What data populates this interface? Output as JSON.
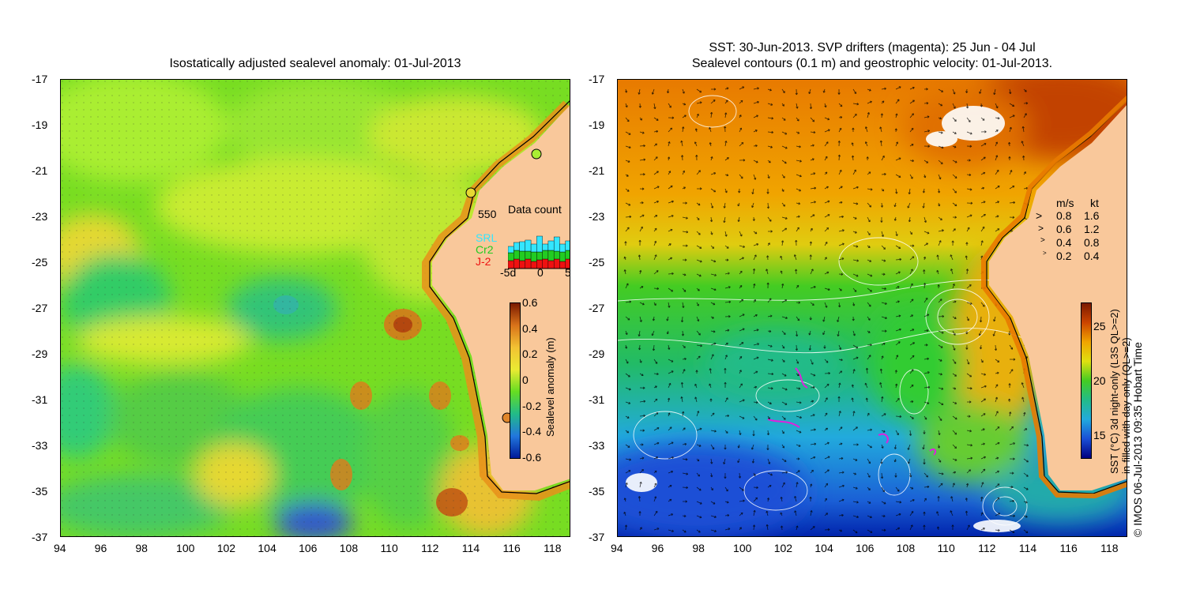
{
  "left_panel": {
    "title": "Isostatically adjusted sealevel anomaly: 01-Jul-2013",
    "colorbar_label": "Sealevel anomaly (m)",
    "colorbar_ticks": [
      "0.6",
      "0.4",
      "0.2",
      "0",
      "-0.2",
      "-0.4",
      "-0.6"
    ],
    "inset": {
      "title": "Data count",
      "max_label": "550",
      "legend": [
        {
          "label": "SRL",
          "color": "#33e6ff"
        },
        {
          "label": "Cr2",
          "color": "#22cc22"
        },
        {
          "label": "J-2",
          "color": "#ee1111"
        }
      ],
      "x_ticks": [
        "-5d",
        "0",
        "5"
      ]
    }
  },
  "right_panel": {
    "title_line1": "SST: 30-Jun-2013. SVP drifters (magenta): 25 Jun - 04 Jul",
    "title_line2": "Sealevel contours (0.1 m) and geostrophic velocity: 01-Jul-2013.",
    "speed_legend": {
      "header_ms": "m/s",
      "header_kt": "kt",
      "rows": [
        {
          "ms": "0.8",
          "kt": "1.6"
        },
        {
          "ms": "0.6",
          "kt": "1.2"
        },
        {
          "ms": "0.4",
          "kt": "0.8"
        },
        {
          "ms": "0.2",
          "kt": "0.4"
        }
      ]
    },
    "colorbar_ticks": [
      "25",
      "20",
      "15"
    ],
    "colorbar_label_line1": "SST (°C) 3d night-only (L3S QL>=2)",
    "colorbar_label_line2": "in-filled with day-only (QL>=2)",
    "credit": "© IMOS 06-Jul-2013 09:35 Hobart Time"
  },
  "axes": {
    "y_ticks": [
      "-17",
      "-19",
      "-21",
      "-23",
      "-25",
      "-27",
      "-29",
      "-31",
      "-33",
      "-35",
      "-37"
    ],
    "x_ticks": [
      "94",
      "96",
      "98",
      "100",
      "102",
      "104",
      "106",
      "108",
      "110",
      "112",
      "114",
      "116",
      "118"
    ]
  },
  "colors": {
    "land": "#f9c89b",
    "ssh_bg": "#66dd22",
    "sst_warm": "#e87a00",
    "sst_mid": "#22cc22",
    "sst_cool": "#1a4fd6"
  }
}
